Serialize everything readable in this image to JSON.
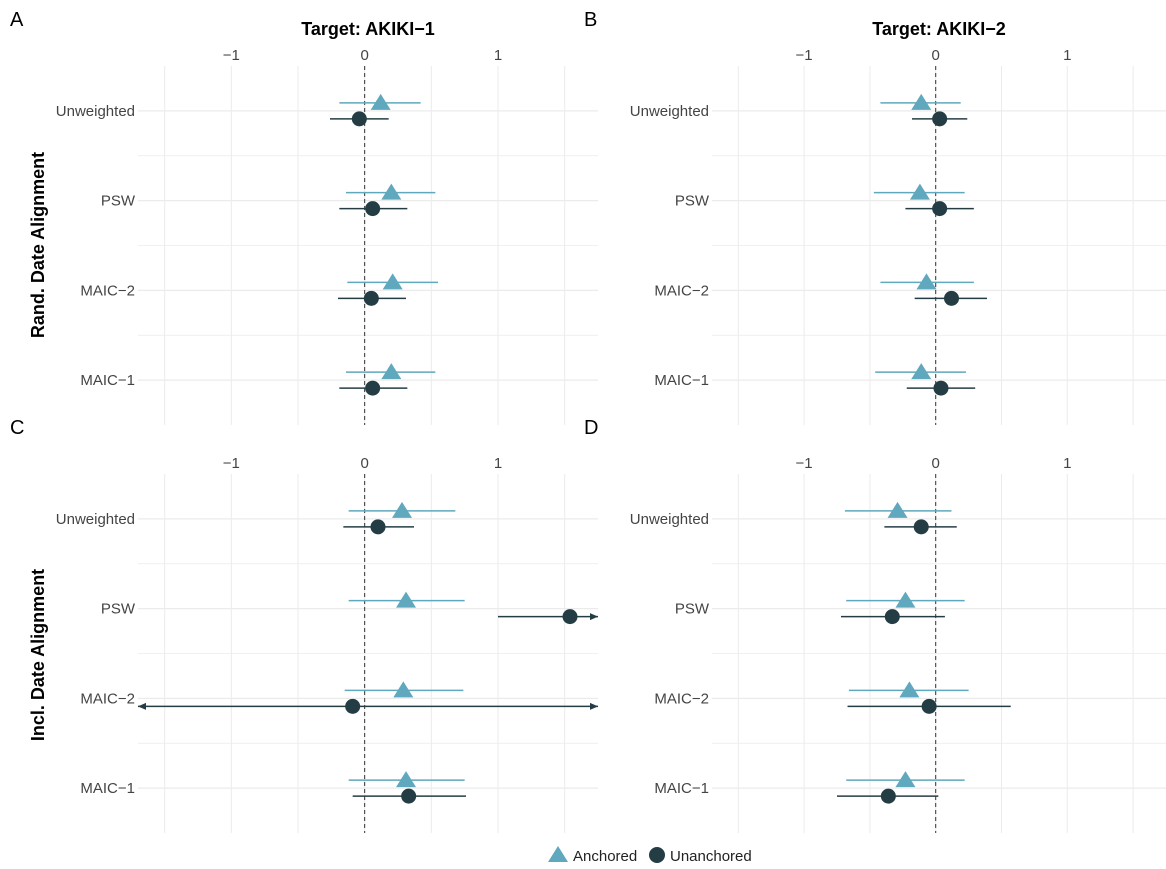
{
  "colors": {
    "anchored": "#5fa8bd",
    "unanchored": "#243d45",
    "grid": "#ebebeb",
    "zero_line": "#333333"
  },
  "legend": {
    "anchored_label": "Anchored",
    "unanchored_label": "Unanchored",
    "anchored_shape": "triangle",
    "unanchored_shape": "circle",
    "placement": "bottom"
  },
  "row_labels": [
    "Rand. Date Alignment",
    "Incl. Date Alignment"
  ],
  "chart_data": [
    {
      "panel": "A",
      "title": "Target: AKIKI−1",
      "type": "forest",
      "xlim": [
        -1.7,
        1.75
      ],
      "xticks": [
        -1,
        0,
        1
      ],
      "xtick_labels": [
        "−1",
        "0",
        "1"
      ],
      "reference_line": 0,
      "grid": true,
      "categories": [
        "Unweighted",
        "PSW",
        "MAIC−2",
        "MAIC−1"
      ],
      "series": [
        {
          "name": "Anchored",
          "points": [
            {
              "y": "Unweighted",
              "est": 0.12,
              "lo": -0.19,
              "hi": 0.42
            },
            {
              "y": "PSW",
              "est": 0.2,
              "lo": -0.14,
              "hi": 0.53
            },
            {
              "y": "MAIC−2",
              "est": 0.21,
              "lo": -0.13,
              "hi": 0.55
            },
            {
              "y": "MAIC−1",
              "est": 0.2,
              "lo": -0.14,
              "hi": 0.53
            }
          ]
        },
        {
          "name": "Unanchored",
          "points": [
            {
              "y": "Unweighted",
              "est": -0.04,
              "lo": -0.26,
              "hi": 0.18
            },
            {
              "y": "PSW",
              "est": 0.06,
              "lo": -0.19,
              "hi": 0.32
            },
            {
              "y": "MAIC−2",
              "est": 0.05,
              "lo": -0.2,
              "hi": 0.31
            },
            {
              "y": "MAIC−1",
              "est": 0.06,
              "lo": -0.19,
              "hi": 0.32
            }
          ]
        }
      ]
    },
    {
      "panel": "B",
      "title": "Target: AKIKI−2",
      "type": "forest",
      "xlim": [
        -1.7,
        1.75
      ],
      "xticks": [
        -1,
        0,
        1
      ],
      "xtick_labels": [
        "−1",
        "0",
        "1"
      ],
      "reference_line": 0,
      "grid": true,
      "categories": [
        "Unweighted",
        "PSW",
        "MAIC−2",
        "MAIC−1"
      ],
      "series": [
        {
          "name": "Anchored",
          "points": [
            {
              "y": "Unweighted",
              "est": -0.11,
              "lo": -0.42,
              "hi": 0.19
            },
            {
              "y": "PSW",
              "est": -0.12,
              "lo": -0.47,
              "hi": 0.22
            },
            {
              "y": "MAIC−2",
              "est": -0.07,
              "lo": -0.42,
              "hi": 0.29
            },
            {
              "y": "MAIC−1",
              "est": -0.11,
              "lo": -0.46,
              "hi": 0.23
            }
          ]
        },
        {
          "name": "Unanchored",
          "points": [
            {
              "y": "Unweighted",
              "est": 0.03,
              "lo": -0.18,
              "hi": 0.24
            },
            {
              "y": "PSW",
              "est": 0.03,
              "lo": -0.23,
              "hi": 0.29
            },
            {
              "y": "MAIC−2",
              "est": 0.12,
              "lo": -0.16,
              "hi": 0.39
            },
            {
              "y": "MAIC−1",
              "est": 0.04,
              "lo": -0.22,
              "hi": 0.3
            }
          ]
        }
      ]
    },
    {
      "panel": "C",
      "title": "",
      "type": "forest",
      "xlim": [
        -1.7,
        1.75
      ],
      "xticks": [
        -1,
        0,
        1
      ],
      "xtick_labels": [
        "−1",
        "0",
        "1"
      ],
      "reference_line": 0,
      "grid": true,
      "categories": [
        "Unweighted",
        "PSW",
        "MAIC−2",
        "MAIC−1"
      ],
      "series": [
        {
          "name": "Anchored",
          "points": [
            {
              "y": "Unweighted",
              "est": 0.28,
              "lo": -0.12,
              "hi": 0.68
            },
            {
              "y": "PSW",
              "est": 0.31,
              "lo": -0.12,
              "hi": 0.75
            },
            {
              "y": "MAIC−2",
              "est": 0.29,
              "lo": -0.15,
              "hi": 0.74
            },
            {
              "y": "MAIC−1",
              "est": 0.31,
              "lo": -0.12,
              "hi": 0.75
            }
          ]
        },
        {
          "name": "Unanchored",
          "points": [
            {
              "y": "Unweighted",
              "est": 0.1,
              "lo": -0.16,
              "hi": 0.37
            },
            {
              "y": "PSW",
              "est": 1.54,
              "lo": 1.0,
              "hi": 1.75,
              "arrow_right": true
            },
            {
              "y": "MAIC−2",
              "est": -0.09,
              "lo": -1.7,
              "hi": 1.75,
              "arrow_left": true,
              "arrow_right": true
            },
            {
              "y": "MAIC−1",
              "est": 0.33,
              "lo": -0.09,
              "hi": 0.76
            }
          ]
        }
      ]
    },
    {
      "panel": "D",
      "title": "",
      "type": "forest",
      "xlim": [
        -1.7,
        1.75
      ],
      "xticks": [
        -1,
        0,
        1
      ],
      "xtick_labels": [
        "−1",
        "0",
        "1"
      ],
      "reference_line": 0,
      "grid": true,
      "categories": [
        "Unweighted",
        "PSW",
        "MAIC−2",
        "MAIC−1"
      ],
      "series": [
        {
          "name": "Anchored",
          "points": [
            {
              "y": "Unweighted",
              "est": -0.29,
              "lo": -0.69,
              "hi": 0.12
            },
            {
              "y": "PSW",
              "est": -0.23,
              "lo": -0.68,
              "hi": 0.22
            },
            {
              "y": "MAIC−2",
              "est": -0.2,
              "lo": -0.66,
              "hi": 0.25
            },
            {
              "y": "MAIC−1",
              "est": -0.23,
              "lo": -0.68,
              "hi": 0.22
            }
          ]
        },
        {
          "name": "Unanchored",
          "points": [
            {
              "y": "Unweighted",
              "est": -0.11,
              "lo": -0.39,
              "hi": 0.16
            },
            {
              "y": "PSW",
              "est": -0.33,
              "lo": -0.72,
              "hi": 0.07
            },
            {
              "y": "MAIC−2",
              "est": -0.05,
              "lo": -0.67,
              "hi": 0.57
            },
            {
              "y": "MAIC−1",
              "est": -0.36,
              "lo": -0.75,
              "hi": 0.02
            }
          ]
        }
      ]
    }
  ]
}
